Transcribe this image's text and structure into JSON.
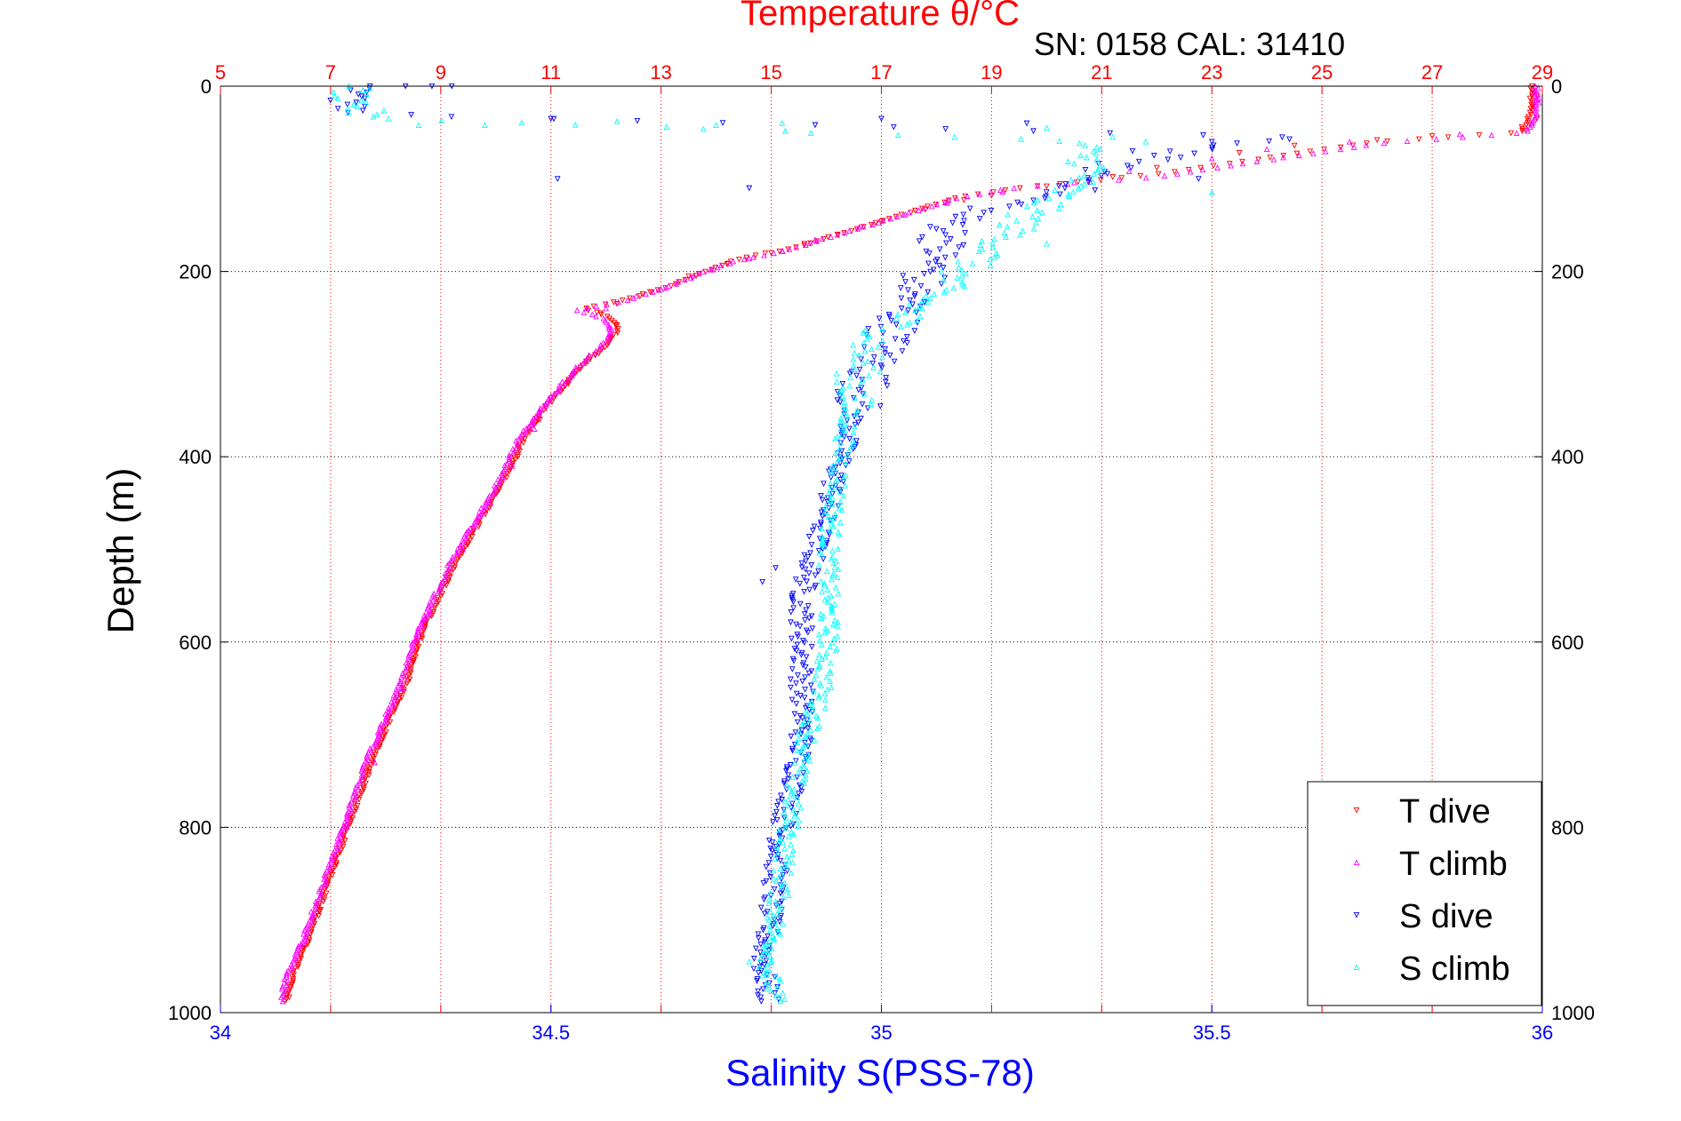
{
  "chart_data": {
    "type": "scatter",
    "title": "Temperature θ/°C",
    "subtitle": "SN: 0158  CAL: 31410",
    "xlabel": "Salinity S(PSS-78)",
    "ylabel": "Depth (m)",
    "x_bottom": {
      "label": "Salinity S(PSS-78)",
      "range": [
        34,
        36
      ],
      "ticks": [
        "34",
        "34.5",
        "35",
        "35.5",
        "36"
      ],
      "tick_values": [
        34,
        34.5,
        35,
        35.5,
        36
      ],
      "color": "#0000ff"
    },
    "x_top": {
      "label": "Temperature θ/°C",
      "range": [
        5,
        29
      ],
      "ticks": [
        "5",
        "7",
        "9",
        "11",
        "13",
        "15",
        "17",
        "19",
        "21",
        "23",
        "25",
        "27",
        "29"
      ],
      "tick_values": [
        5,
        7,
        9,
        11,
        13,
        15,
        17,
        19,
        21,
        23,
        25,
        27,
        29
      ],
      "color": "#ff0000"
    },
    "y": {
      "label": "Depth (m)",
      "range": [
        0,
        1000
      ],
      "reversed": true,
      "ticks": [
        "0",
        "200",
        "400",
        "600",
        "800",
        "1000"
      ],
      "tick_values": [
        0,
        200,
        400,
        600,
        800,
        1000
      ]
    },
    "grid": true,
    "legend": {
      "position": "bottom-right",
      "entries": [
        "T dive",
        "T climb",
        "S dive",
        "S climb"
      ]
    },
    "series": [
      {
        "name": "T dive",
        "axis": "temperature",
        "color": "#ff0000",
        "marker": "triangle-down",
        "profile": [
          [
            28.8,
            0
          ],
          [
            28.8,
            30
          ],
          [
            28.6,
            50
          ],
          [
            26,
            60
          ],
          [
            22,
            95
          ],
          [
            19.5,
            110
          ],
          [
            18.4,
            120
          ],
          [
            17.6,
            135
          ],
          [
            16.5,
            155
          ],
          [
            15.4,
            175
          ],
          [
            14.5,
            185
          ],
          [
            13.8,
            200
          ],
          [
            13.2,
            215
          ],
          [
            12.4,
            230
          ],
          [
            11.6,
            240
          ],
          [
            12.1,
            250
          ],
          [
            12.2,
            265
          ],
          [
            12.0,
            280
          ],
          [
            11.6,
            300
          ],
          [
            11.0,
            340
          ],
          [
            10.5,
            380
          ],
          [
            10.2,
            420
          ],
          [
            9.8,
            460
          ],
          [
            9.3,
            510
          ],
          [
            8.9,
            560
          ],
          [
            8.6,
            600
          ],
          [
            8.4,
            640
          ],
          [
            8.1,
            680
          ],
          [
            7.8,
            720
          ],
          [
            7.5,
            770
          ],
          [
            7.2,
            820
          ],
          [
            6.9,
            870
          ],
          [
            6.6,
            920
          ],
          [
            6.3,
            960
          ],
          [
            6.2,
            990
          ]
        ],
        "points": [
          [
            28.9,
            10
          ],
          [
            28.8,
            20
          ],
          [
            28.9,
            35
          ],
          [
            28.7,
            48
          ],
          [
            27.0,
            54
          ],
          [
            26.0,
            58
          ],
          [
            24.5,
            64
          ],
          [
            23.5,
            72
          ],
          [
            22.0,
            88
          ],
          [
            21.2,
            98
          ],
          [
            20.0,
            108
          ],
          [
            19.0,
            118
          ],
          [
            18.5,
            123
          ],
          [
            17.8,
            133
          ],
          [
            17.0,
            146
          ],
          [
            16.2,
            160
          ],
          [
            15.6,
            170
          ],
          [
            15.0,
            180
          ],
          [
            14.2,
            192
          ],
          [
            13.5,
            205
          ],
          [
            12.8,
            222
          ],
          [
            12.2,
            235
          ],
          [
            11.9,
            245
          ],
          [
            12.2,
            258
          ],
          [
            12.1,
            272
          ],
          [
            11.8,
            290
          ],
          [
            11.3,
            320
          ],
          [
            10.8,
            360
          ],
          [
            10.4,
            400
          ],
          [
            10.0,
            440
          ],
          [
            9.6,
            480
          ],
          [
            9.1,
            530
          ],
          [
            8.7,
            580
          ],
          [
            8.5,
            620
          ],
          [
            8.2,
            660
          ],
          [
            7.9,
            700
          ],
          [
            7.7,
            740
          ],
          [
            7.4,
            790
          ],
          [
            7.1,
            840
          ],
          [
            6.8,
            890
          ],
          [
            6.5,
            930
          ],
          [
            6.3,
            970
          ],
          [
            6.2,
            985
          ]
        ]
      },
      {
        "name": "T climb",
        "axis": "temperature",
        "color": "#ff00ff",
        "marker": "triangle-up",
        "profile": [
          [
            28.9,
            0
          ],
          [
            28.9,
            30
          ],
          [
            28.7,
            50
          ],
          [
            26,
            62
          ],
          [
            22,
            98
          ],
          [
            19.4,
            110
          ],
          [
            18.3,
            122
          ],
          [
            17.5,
            137
          ],
          [
            16.4,
            157
          ],
          [
            15.3,
            177
          ],
          [
            14.4,
            188
          ],
          [
            13.7,
            202
          ],
          [
            13.1,
            217
          ],
          [
            12.3,
            232
          ],
          [
            11.5,
            242
          ],
          [
            12.0,
            252
          ],
          [
            12.1,
            267
          ],
          [
            11.9,
            282
          ],
          [
            11.5,
            302
          ],
          [
            10.9,
            342
          ],
          [
            10.4,
            382
          ],
          [
            10.1,
            422
          ],
          [
            9.7,
            462
          ],
          [
            9.2,
            512
          ],
          [
            8.8,
            562
          ],
          [
            8.5,
            602
          ],
          [
            8.3,
            642
          ],
          [
            8.0,
            682
          ],
          [
            7.7,
            722
          ],
          [
            7.4,
            772
          ],
          [
            7.1,
            822
          ],
          [
            6.8,
            872
          ],
          [
            6.5,
            922
          ],
          [
            6.2,
            962
          ],
          [
            6.1,
            990
          ]
        ],
        "points": [
          [
            28.9,
            15
          ],
          [
            28.8,
            40
          ],
          [
            27.5,
            52
          ],
          [
            25.5,
            60
          ],
          [
            24,
            68
          ],
          [
            23,
            78
          ],
          [
            21.5,
            92
          ],
          [
            20.5,
            104
          ],
          [
            19.2,
            114
          ],
          [
            18.2,
            126
          ],
          [
            17.4,
            139
          ],
          [
            16.6,
            152
          ],
          [
            15.8,
            166
          ],
          [
            15.2,
            178
          ],
          [
            14.6,
            186
          ],
          [
            13.9,
            198
          ],
          [
            13.0,
            219
          ],
          [
            12.0,
            240
          ],
          [
            12.1,
            262
          ],
          [
            11.4,
            310
          ],
          [
            10.7,
            370
          ],
          [
            10.3,
            410
          ],
          [
            9.9,
            450
          ],
          [
            9.4,
            500
          ],
          [
            8.8,
            570
          ],
          [
            8.3,
            650
          ],
          [
            7.8,
            730
          ],
          [
            7.3,
            800
          ],
          [
            6.9,
            860
          ],
          [
            6.6,
            910
          ],
          [
            6.2,
            975
          ]
        ]
      },
      {
        "name": "S dive",
        "axis": "salinity",
        "color": "#0000ff",
        "marker": "triangle-down",
        "profile": [
          [
            34.19,
            0
          ],
          [
            34.19,
            10
          ],
          [
            34.21,
            20
          ],
          [
            34.21,
            30
          ],
          [
            35.6,
            55
          ],
          [
            35.35,
            85
          ],
          [
            35.3,
            110
          ],
          [
            35.12,
            140
          ],
          [
            35.1,
            160
          ],
          [
            35.08,
            190
          ],
          [
            35.05,
            220
          ],
          [
            35.02,
            260
          ],
          [
            34.99,
            300
          ],
          [
            34.96,
            350
          ],
          [
            34.94,
            400
          ],
          [
            34.92,
            450
          ],
          [
            34.9,
            500
          ],
          [
            34.88,
            550
          ],
          [
            34.88,
            600
          ],
          [
            34.88,
            650
          ],
          [
            34.88,
            700
          ],
          [
            34.87,
            750
          ],
          [
            34.85,
            800
          ],
          [
            34.84,
            850
          ],
          [
            34.83,
            900
          ],
          [
            34.82,
            950
          ],
          [
            34.83,
            990
          ]
        ],
        "spread": 0.035,
        "points": [
          [
            34.28,
            0
          ],
          [
            34.32,
            0
          ],
          [
            34.35,
            0
          ],
          [
            34.5,
            35
          ],
          [
            34.51,
            100
          ],
          [
            35.0,
            35
          ],
          [
            35.22,
            40
          ],
          [
            34.8,
            110
          ],
          [
            35.5,
            60
          ],
          [
            35.48,
            100
          ],
          [
            35.38,
            70
          ],
          [
            34.82,
            535
          ],
          [
            34.84,
            520
          ]
        ]
      },
      {
        "name": "S climb",
        "axis": "salinity",
        "color": "#00ffff",
        "marker": "triangle-up",
        "profile": [
          [
            34.2,
            0
          ],
          [
            34.2,
            10
          ],
          [
            34.21,
            20
          ],
          [
            34.22,
            35
          ],
          [
            34.58,
            42
          ],
          [
            35.3,
            60
          ],
          [
            35.32,
            90
          ],
          [
            35.28,
            110
          ],
          [
            35.22,
            140
          ],
          [
            35.18,
            170
          ],
          [
            35.12,
            200
          ],
          [
            35.05,
            240
          ],
          [
            34.98,
            280
          ],
          [
            34.96,
            320
          ],
          [
            34.95,
            360
          ],
          [
            34.94,
            400
          ],
          [
            34.93,
            450
          ],
          [
            34.92,
            500
          ],
          [
            34.92,
            550
          ],
          [
            34.92,
            600
          ],
          [
            34.91,
            650
          ],
          [
            34.89,
            700
          ],
          [
            34.87,
            750
          ],
          [
            34.86,
            800
          ],
          [
            34.85,
            850
          ],
          [
            34.84,
            900
          ],
          [
            34.83,
            950
          ],
          [
            34.84,
            990
          ]
        ],
        "spread": 0.03,
        "points": [
          [
            34.3,
            42
          ],
          [
            34.4,
            42
          ],
          [
            34.6,
            38
          ],
          [
            34.75,
            42
          ],
          [
            34.85,
            40
          ],
          [
            35.25,
            45
          ],
          [
            35.4,
            60
          ],
          [
            35.5,
            115
          ],
          [
            35.35,
            55
          ],
          [
            35.25,
            170
          ],
          [
            34.8,
            945
          ],
          [
            34.82,
            960
          ]
        ]
      }
    ]
  }
}
